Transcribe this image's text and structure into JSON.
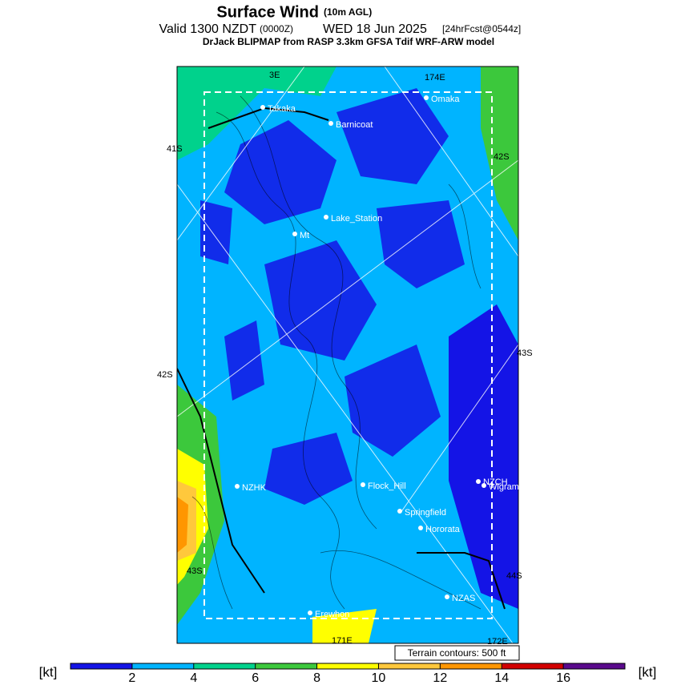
{
  "header": {
    "title": "Surface Wind",
    "title_note": "(10m AGL)",
    "valid": "Valid 1300 NZDT",
    "zulu": "(0000Z)",
    "date": "WED 18 Jun 2025",
    "forecast": "[24hrFcst@0544z]",
    "model": "DrJack BLIPMAP from RASP 3.3km GFSA Tdif WRF-ARW model"
  },
  "map": {
    "stations": [
      "Takaka",
      "Barnicoat",
      "Omaka",
      "Lake_Station",
      "Mt",
      "NZHK",
      "Flock_Hill",
      "NZCH",
      "Wigram",
      "Springfield",
      "Hororata",
      "NZAS",
      "Erewhon"
    ],
    "grid_labels": [
      "3E",
      "174E",
      "41S",
      "42S",
      "42S",
      "43S",
      "43S",
      "44S",
      "171E",
      "172E"
    ],
    "note": "Terrain contours: 500 ft"
  },
  "colorbar": {
    "unit": "[kt]",
    "lim": [
      0,
      18
    ],
    "ticks": [
      2,
      4,
      6,
      8,
      10,
      12,
      14,
      16
    ],
    "colors": [
      "#1414e6",
      "#00b4ff",
      "#00d28c",
      "#3cc83c",
      "#ffff00",
      "#ffc83c",
      "#ff9600",
      "#d20000",
      "#5a0a8c"
    ]
  }
}
